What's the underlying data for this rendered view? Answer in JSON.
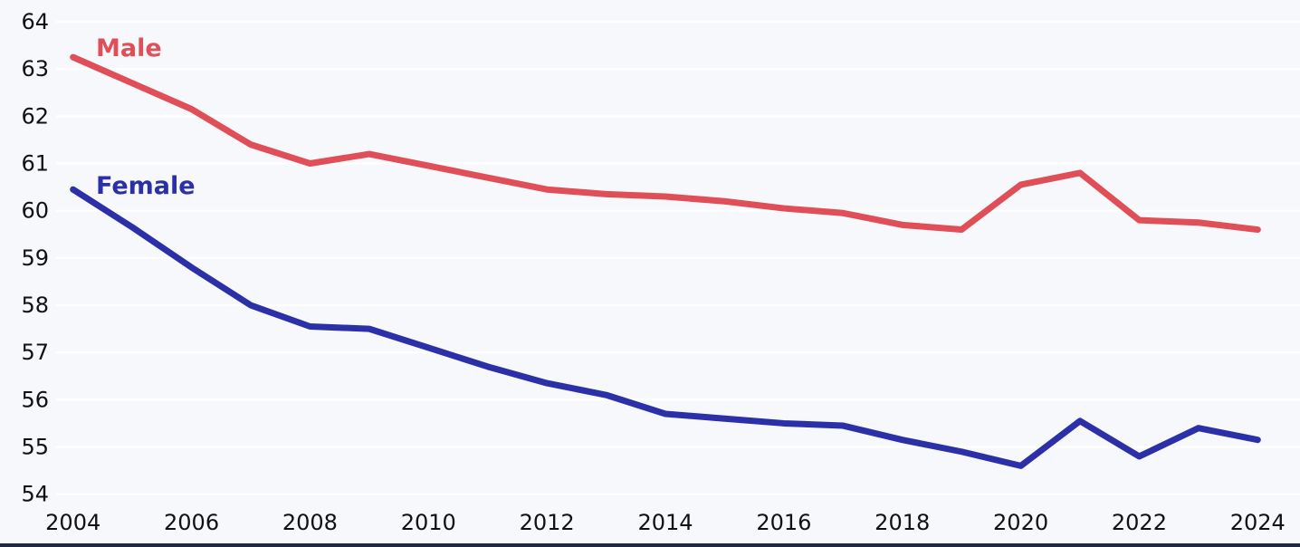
{
  "theme": {
    "background": "#f6f8fc",
    "gridline_color": "#ffffff",
    "tick_label_color": "#101113",
    "footer_bar_color": "#202a3c"
  },
  "chart_data": {
    "type": "line",
    "title": "",
    "xlabel": "",
    "ylabel": "",
    "x": [
      2004,
      2005,
      2006,
      2007,
      2008,
      2009,
      2010,
      2011,
      2012,
      2013,
      2014,
      2015,
      2016,
      2017,
      2018,
      2019,
      2020,
      2021,
      2022,
      2023,
      2024
    ],
    "series": [
      {
        "name": "Male",
        "color": "#e04e58",
        "values": [
          63.25,
          62.7,
          62.15,
          61.4,
          61.0,
          61.2,
          60.95,
          60.7,
          60.45,
          60.35,
          60.3,
          60.2,
          60.05,
          59.95,
          59.7,
          59.6,
          60.55,
          60.8,
          59.8,
          59.75,
          59.6
        ]
      },
      {
        "name": "Female",
        "color": "#2b2fa8",
        "values": [
          60.45,
          59.65,
          58.8,
          58.0,
          57.55,
          57.5,
          57.1,
          56.7,
          56.35,
          56.1,
          55.7,
          55.6,
          55.5,
          55.45,
          55.15,
          54.9,
          54.6,
          55.55,
          54.8,
          55.4,
          55.15
        ]
      }
    ],
    "ylim": [
      54,
      64
    ],
    "ytick_step": 1,
    "ytick_labels": [
      "54",
      "55",
      "56",
      "57",
      "58",
      "59",
      "60",
      "61",
      "62",
      "63",
      "64"
    ],
    "xtick_labels": [
      "2004",
      "2006",
      "2008",
      "2010",
      "2012",
      "2014",
      "2016",
      "2018",
      "2020",
      "2022",
      "2024"
    ],
    "grid": true,
    "legend_position": "inline-labels-near-line-start"
  }
}
